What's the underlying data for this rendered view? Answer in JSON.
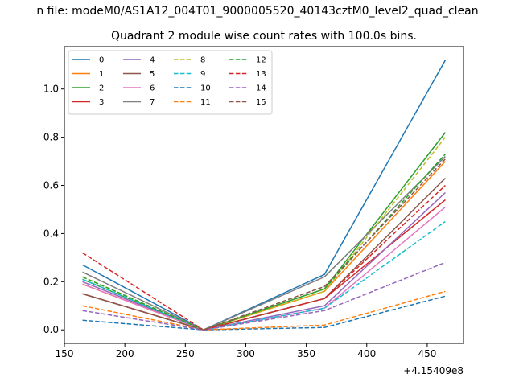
{
  "chart_data": {
    "type": "line",
    "suptitle": "n file: modeM0/AS1A12_004T01_9000005520_40143cztM0_level2_quad_clean",
    "title": "Quadrant 2 module wise count rates with 100.0s bins.",
    "xlabel": "",
    "ylabel": "",
    "offset_label": "+4.15409e8",
    "xlim": [
      150,
      480
    ],
    "ylim": [
      -0.056,
      1.176
    ],
    "xticks": [
      150,
      200,
      250,
      300,
      350,
      400,
      450
    ],
    "xtick_labels": [
      "150",
      "200",
      "250",
      "300",
      "350",
      "400",
      "450"
    ],
    "yticks": [
      0.0,
      0.2,
      0.4,
      0.6,
      0.8,
      1.0
    ],
    "ytick_labels": [
      "0.0",
      "0.2",
      "0.4",
      "0.6",
      "0.8",
      "1.0"
    ],
    "grid": false,
    "legend_position": "top-left",
    "legend_columns": 4,
    "x": [
      165,
      265,
      365,
      465
    ],
    "series": [
      {
        "name": "0",
        "color": "#1f77b4",
        "style": "solid",
        "values": [
          0.27,
          0.0,
          0.23,
          1.12
        ]
      },
      {
        "name": "1",
        "color": "#ff7f0e",
        "style": "solid",
        "values": [
          0.19,
          0.0,
          0.16,
          0.7
        ]
      },
      {
        "name": "2",
        "color": "#2ca02c",
        "style": "solid",
        "values": [
          0.21,
          0.0,
          0.17,
          0.82
        ]
      },
      {
        "name": "3",
        "color": "#d62728",
        "style": "solid",
        "values": [
          0.15,
          0.0,
          0.13,
          0.54
        ]
      },
      {
        "name": "4",
        "color": "#9467bd",
        "style": "solid",
        "values": [
          0.2,
          0.0,
          0.1,
          0.57
        ]
      },
      {
        "name": "5",
        "color": "#8c564b",
        "style": "solid",
        "values": [
          0.15,
          0.0,
          0.13,
          0.63
        ]
      },
      {
        "name": "6",
        "color": "#e377c2",
        "style": "solid",
        "values": [
          0.19,
          0.0,
          0.09,
          0.51
        ]
      },
      {
        "name": "7",
        "color": "#7f7f7f",
        "style": "solid",
        "values": [
          0.24,
          0.0,
          0.22,
          0.72
        ]
      },
      {
        "name": "8",
        "color": "#bcbd22",
        "style": "dashed",
        "values": [
          0.22,
          0.0,
          0.16,
          0.8
        ]
      },
      {
        "name": "9",
        "color": "#17becf",
        "style": "dashed",
        "values": [
          0.21,
          0.0,
          0.09,
          0.45
        ]
      },
      {
        "name": "10",
        "color": "#1f77b4",
        "style": "dashed",
        "values": [
          0.04,
          0.0,
          0.01,
          0.14
        ]
      },
      {
        "name": "11",
        "color": "#ff7f0e",
        "style": "dashed",
        "values": [
          0.1,
          0.0,
          0.02,
          0.16
        ]
      },
      {
        "name": "12",
        "color": "#2ca02c",
        "style": "dashed",
        "values": [
          0.22,
          0.0,
          0.17,
          0.73
        ]
      },
      {
        "name": "13",
        "color": "#d62728",
        "style": "dashed",
        "values": [
          0.32,
          0.0,
          0.13,
          0.6
        ]
      },
      {
        "name": "14",
        "color": "#9467bd",
        "style": "dashed",
        "values": [
          0.08,
          0.0,
          0.08,
          0.28
        ]
      },
      {
        "name": "15",
        "color": "#8c564b",
        "style": "dashed",
        "values": [
          0.15,
          0.0,
          0.18,
          0.71
        ]
      }
    ]
  }
}
